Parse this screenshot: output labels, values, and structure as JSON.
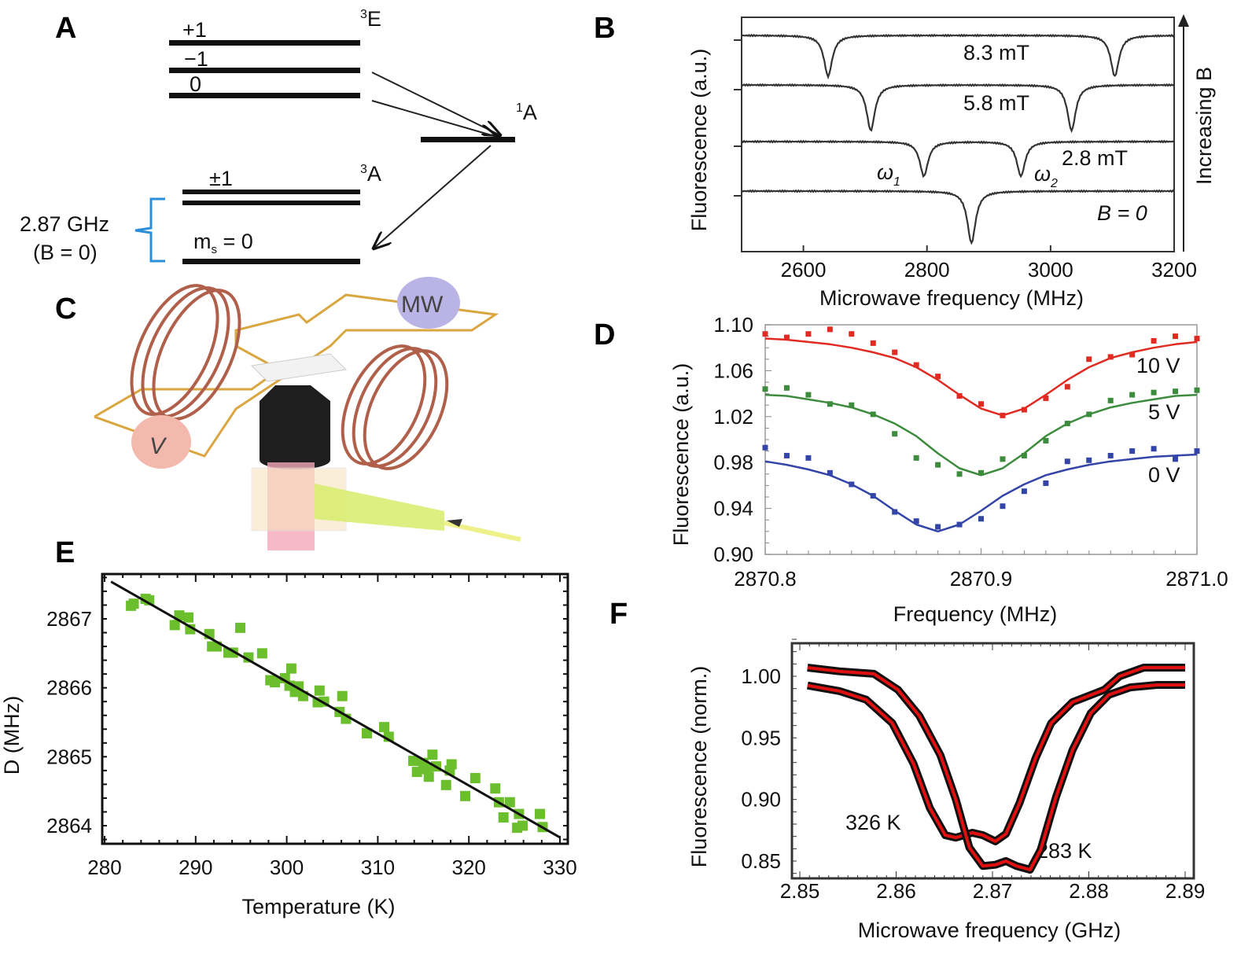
{
  "panels": {
    "a": "A",
    "b": "B",
    "c": "C",
    "d": "D",
    "e": "E",
    "f": "F"
  },
  "diagram_a": {
    "level_plus1": "+1",
    "level_minus1": "−1",
    "level_zero": "0",
    "state_3E": {
      "sup": "3",
      "text": "E"
    },
    "state_1A": {
      "sup": "1",
      "text": "A"
    },
    "state_3A": {
      "sup": "3",
      "text": "A"
    },
    "level_pm1": "±1",
    "ms0": {
      "m": "m",
      "sub": "s",
      "rest": " = 0"
    },
    "gap": "2.87 GHz",
    "gap_condition": "(B = 0)",
    "brace_color": "#2a8fd8"
  },
  "illustration_c": {
    "v_label": "V",
    "mw_label": "MW",
    "coil_color": "#b0604a",
    "wire_color": "#d9a640"
  },
  "chart_data": [
    {
      "type": "line",
      "xlabel": "Microwave frequency (MHz)",
      "ylabel": "Fluorescence (a.u.)",
      "xlim": [
        2500,
        3200
      ],
      "xticks": [
        "2600",
        "2800",
        "3000",
        "3200"
      ],
      "series": [
        {
          "name": "8.3 mT",
          "dips": [
            2640,
            3104
          ]
        },
        {
          "name": "5.8 mT",
          "dips": [
            2709,
            3034
          ]
        },
        {
          "name": "2.8 mT",
          "dips": [
            2795,
            2952
          ]
        },
        {
          "name": "B = 0",
          "dips": [
            2872
          ]
        }
      ],
      "annotations": {
        "omega1": {
          "sym": "ω",
          "sub": "1"
        },
        "omega2": {
          "sym": "ω",
          "sub": "2"
        },
        "arrow": "Increasing B"
      }
    },
    {
      "type": "scatter",
      "xlabel": "Frequency (MHz)",
      "ylabel": "Fluorescence (a.u.)",
      "xlim": [
        2870.8,
        2871.0
      ],
      "ylim": [
        0.9,
        1.1
      ],
      "xticks": [
        "2870.8",
        "2870.9",
        "2871.0"
      ],
      "yticks": [
        "0.90",
        "0.94",
        "0.98",
        "1.02",
        "1.06",
        "1.10"
      ],
      "x": [
        2870.8,
        2870.81,
        2870.82,
        2870.83,
        2870.84,
        2870.85,
        2870.86,
        2870.87,
        2870.88,
        2870.89,
        2870.9,
        2870.91,
        2870.92,
        2870.93,
        2870.94,
        2870.95,
        2870.96,
        2870.97,
        2870.98,
        2870.99,
        2871.0
      ],
      "series": [
        {
          "name": "10 V",
          "color": "#e02a22",
          "values": [
            1.092,
            1.089,
            1.092,
            1.096,
            1.092,
            1.084,
            1.076,
            1.065,
            1.055,
            1.038,
            1.031,
            1.021,
            1.026,
            1.036,
            1.046,
            1.07,
            1.072,
            1.074,
            1.086,
            1.09,
            1.088
          ],
          "fit": [
            [
              2870.8,
              1.088
            ],
            [
              2870.81,
              1.087
            ],
            [
              2870.82,
              1.085
            ],
            [
              2870.83,
              1.083
            ],
            [
              2870.84,
              1.08
            ],
            [
              2870.85,
              1.076
            ],
            [
              2870.86,
              1.071
            ],
            [
              2870.87,
              1.063
            ],
            [
              2870.88,
              1.052
            ],
            [
              2870.89,
              1.039
            ],
            [
              2870.9,
              1.027
            ],
            [
              2870.91,
              1.021
            ],
            [
              2870.92,
              1.027
            ],
            [
              2870.93,
              1.039
            ],
            [
              2870.94,
              1.052
            ],
            [
              2870.95,
              1.063
            ],
            [
              2870.96,
              1.071
            ],
            [
              2870.97,
              1.076
            ],
            [
              2870.98,
              1.08
            ],
            [
              2870.99,
              1.083
            ],
            [
              2871.0,
              1.085
            ]
          ]
        },
        {
          "name": "5 V",
          "color": "#3d8b3d",
          "values": [
            1.044,
            1.045,
            1.039,
            1.031,
            1.03,
            1.022,
            1.005,
            0.984,
            0.978,
            0.97,
            0.971,
            0.983,
            0.986,
            0.999,
            1.014,
            1.022,
            1.034,
            1.039,
            1.041,
            1.042,
            1.043
          ],
          "fit": [
            [
              2870.8,
              1.039
            ],
            [
              2870.81,
              1.038
            ],
            [
              2870.82,
              1.035
            ],
            [
              2870.83,
              1.032
            ],
            [
              2870.84,
              1.028
            ],
            [
              2870.85,
              1.022
            ],
            [
              2870.86,
              1.014
            ],
            [
              2870.87,
              1.003
            ],
            [
              2870.88,
              0.988
            ],
            [
              2870.89,
              0.975
            ],
            [
              2870.9,
              0.969
            ],
            [
              2870.91,
              0.975
            ],
            [
              2870.92,
              0.988
            ],
            [
              2870.93,
              1.003
            ],
            [
              2870.94,
              1.014
            ],
            [
              2870.95,
              1.022
            ],
            [
              2870.96,
              1.028
            ],
            [
              2870.97,
              1.032
            ],
            [
              2870.98,
              1.035
            ],
            [
              2870.99,
              1.038
            ],
            [
              2871.0,
              1.039
            ]
          ]
        },
        {
          "name": "0 V",
          "color": "#3345a8",
          "values": [
            0.993,
            0.986,
            0.984,
            0.971,
            0.961,
            0.951,
            0.937,
            0.929,
            0.924,
            0.926,
            0.931,
            0.942,
            0.955,
            0.962,
            0.981,
            0.982,
            0.986,
            0.99,
            0.992,
            0.983,
            0.99
          ],
          "fit": [
            [
              2870.8,
              0.981
            ],
            [
              2870.81,
              0.978
            ],
            [
              2870.82,
              0.974
            ],
            [
              2870.83,
              0.969
            ],
            [
              2870.84,
              0.961
            ],
            [
              2870.85,
              0.951
            ],
            [
              2870.86,
              0.938
            ],
            [
              2870.87,
              0.926
            ],
            [
              2870.88,
              0.92
            ],
            [
              2870.89,
              0.926
            ],
            [
              2870.9,
              0.938
            ],
            [
              2870.91,
              0.951
            ],
            [
              2870.92,
              0.961
            ],
            [
              2870.93,
              0.969
            ],
            [
              2870.94,
              0.974
            ],
            [
              2870.95,
              0.978
            ],
            [
              2870.96,
              0.981
            ],
            [
              2870.97,
              0.983
            ],
            [
              2870.98,
              0.985
            ],
            [
              2870.99,
              0.986
            ],
            [
              2871.0,
              0.987
            ]
          ]
        }
      ]
    },
    {
      "type": "scatter",
      "xlabel": "Temperature (K)",
      "ylabel": "D (MHz)",
      "xlim": [
        280,
        330
      ],
      "ylim": [
        2863.73,
        2867.65
      ],
      "xticks": [
        "280",
        "290",
        "300",
        "310",
        "320",
        "330"
      ],
      "yticks": [
        "2864",
        "2865",
        "2866",
        "2867"
      ],
      "point_color": "#6cbf2c",
      "points": [
        [
          282.9,
          2867.19
        ],
        [
          283.2,
          2867.22
        ],
        [
          284.5,
          2867.29
        ],
        [
          284.9,
          2867.27
        ],
        [
          287.7,
          2866.91
        ],
        [
          288.2,
          2867.05
        ],
        [
          289.2,
          2867.02
        ],
        [
          289.4,
          2866.85
        ],
        [
          291.5,
          2866.78
        ],
        [
          291.8,
          2866.6
        ],
        [
          292.3,
          2866.6
        ],
        [
          293.6,
          2866.51
        ],
        [
          294.1,
          2866.51
        ],
        [
          294.9,
          2866.87
        ],
        [
          295.8,
          2866.44
        ],
        [
          297.3,
          2866.5
        ],
        [
          298.2,
          2866.11
        ],
        [
          298.7,
          2866.08
        ],
        [
          299.8,
          2866.14
        ],
        [
          300.5,
          2866.28
        ],
        [
          300.3,
          2866.03
        ],
        [
          301.3,
          2866.02
        ],
        [
          300.9,
          2865.94
        ],
        [
          301.8,
          2865.88
        ],
        [
          303.4,
          2865.79
        ],
        [
          303.6,
          2865.96
        ],
        [
          304.1,
          2865.8
        ],
        [
          306.1,
          2865.88
        ],
        [
          305.8,
          2865.65
        ],
        [
          306.5,
          2865.55
        ],
        [
          308.8,
          2865.34
        ],
        [
          310.7,
          2865.43
        ],
        [
          311.2,
          2865.29
        ],
        [
          313.9,
          2864.94
        ],
        [
          314.3,
          2864.78
        ],
        [
          315.0,
          2864.91
        ],
        [
          315.3,
          2864.82
        ],
        [
          315.6,
          2864.71
        ],
        [
          316.0,
          2865.03
        ],
        [
          316.4,
          2864.86
        ],
        [
          317.9,
          2864.8
        ],
        [
          317.5,
          2864.59
        ],
        [
          318.1,
          2864.89
        ],
        [
          319.6,
          2864.43
        ],
        [
          320.7,
          2864.69
        ],
        [
          322.9,
          2864.54
        ],
        [
          323.3,
          2864.34
        ],
        [
          323.8,
          2864.12
        ],
        [
          324.5,
          2864.34
        ],
        [
          325.5,
          2864.17
        ],
        [
          325.9,
          2864.0
        ],
        [
          325.3,
          2863.97
        ],
        [
          327.8,
          2864.17
        ],
        [
          328.1,
          2863.98
        ]
      ],
      "fit_line": [
        [
          280.7,
          2867.54
        ],
        [
          330.0,
          2863.83
        ]
      ]
    },
    {
      "type": "line",
      "xlabel": "Microwave frequency (GHz)",
      "ylabel": "Fluorescence (norm.)",
      "xlim": [
        2.85,
        2.89
      ],
      "ylim": [
        0.835,
        1.03
      ],
      "xticks": [
        "2.85",
        "2.86",
        "2.87",
        "2.88",
        "2.89"
      ],
      "yticks": [
        "0.85",
        "0.90",
        "0.95",
        "1.00"
      ],
      "series": [
        {
          "name": "326 K",
          "points": [
            [
              2.8508,
              0.9925
            ],
            [
              2.8541,
              0.988
            ],
            [
              2.8569,
              0.981
            ],
            [
              2.8596,
              0.962
            ],
            [
              2.8618,
              0.929
            ],
            [
              2.8635,
              0.893
            ],
            [
              2.8651,
              0.871
            ],
            [
              2.8662,
              0.869
            ],
            [
              2.8679,
              0.873
            ],
            [
              2.869,
              0.871
            ],
            [
              2.8703,
              0.866
            ],
            [
              2.8714,
              0.872
            ],
            [
              2.8728,
              0.897
            ],
            [
              2.8745,
              0.934
            ],
            [
              2.8761,
              0.962
            ],
            [
              2.8783,
              0.979
            ],
            [
              2.8816,
              0.989
            ],
            [
              2.8832,
              1.0
            ],
            [
              2.8857,
              1.007
            ],
            [
              2.89,
              1.007
            ]
          ]
        },
        {
          "name": "283 K",
          "points": [
            [
              2.8508,
              1.007
            ],
            [
              2.8541,
              1.004
            ],
            [
              2.8577,
              1.002
            ],
            [
              2.8602,
              0.989
            ],
            [
              2.8624,
              0.968
            ],
            [
              2.8646,
              0.936
            ],
            [
              2.8662,
              0.9
            ],
            [
              2.8676,
              0.861
            ],
            [
              2.869,
              0.846
            ],
            [
              2.8703,
              0.847
            ],
            [
              2.8714,
              0.85
            ],
            [
              2.8725,
              0.846
            ],
            [
              2.8739,
              0.843
            ],
            [
              2.875,
              0.859
            ],
            [
              2.8766,
              0.902
            ],
            [
              2.8783,
              0.94
            ],
            [
              2.8802,
              0.97
            ],
            [
              2.8821,
              0.985
            ],
            [
              2.8843,
              0.991
            ],
            [
              2.8871,
              0.993
            ],
            [
              2.89,
              0.993
            ]
          ]
        }
      ],
      "data_color": "#111111",
      "fit_color": "#e01010"
    }
  ]
}
